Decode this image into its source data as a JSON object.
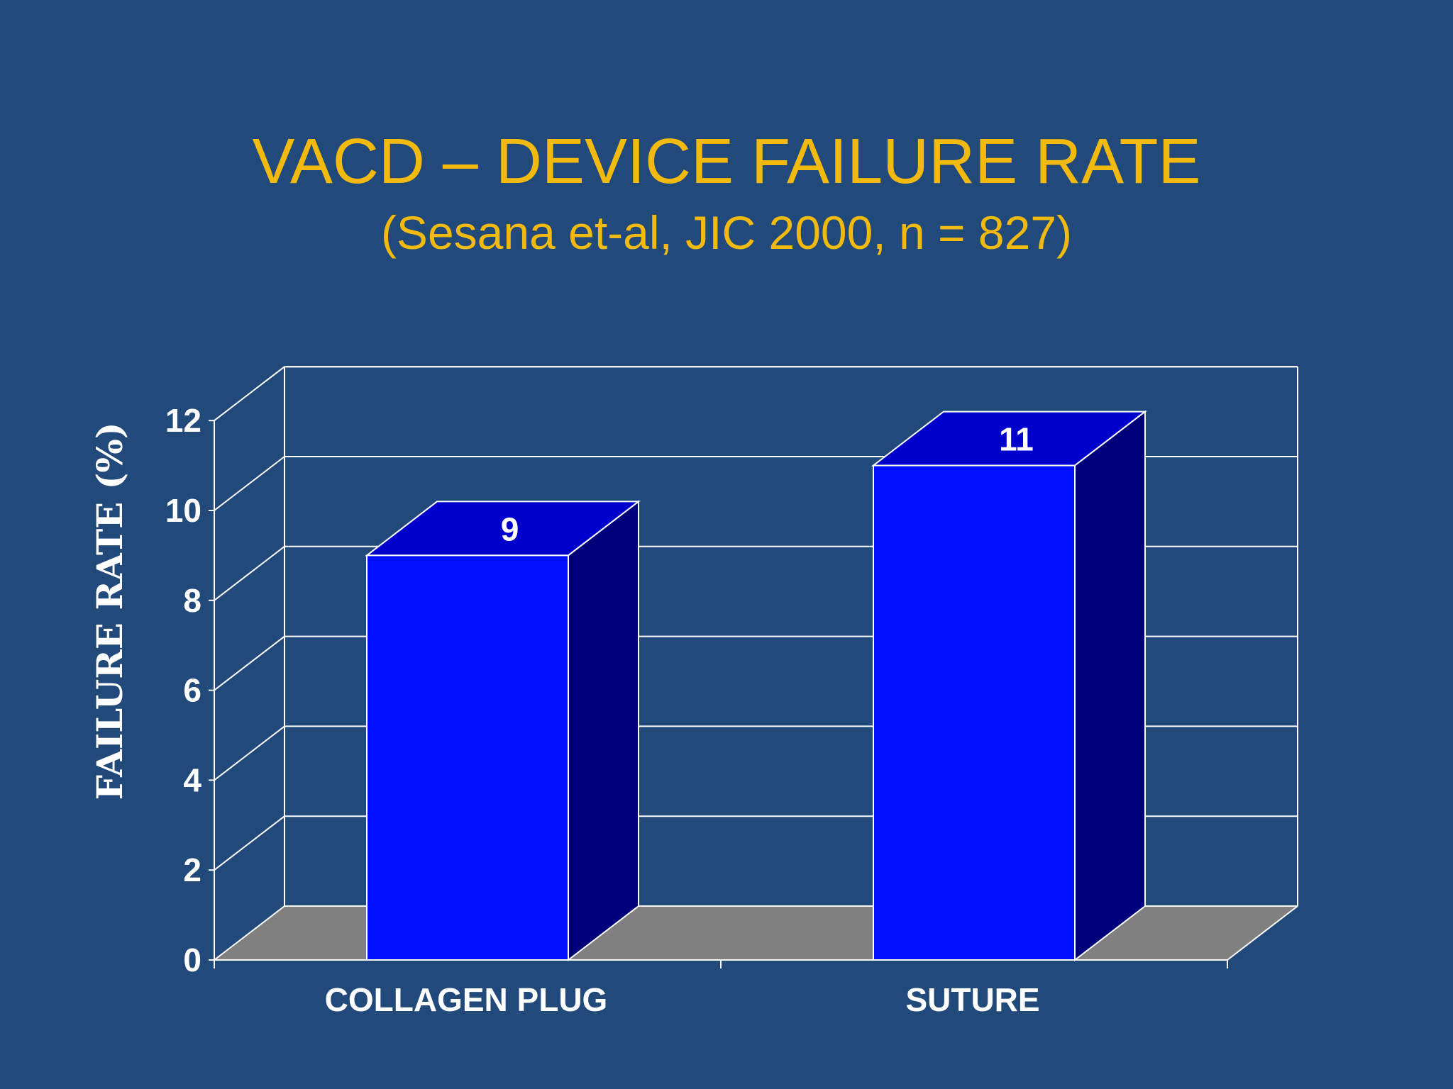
{
  "slide": {
    "title": "VACD – DEVICE FAILURE RATE",
    "subtitle": "(Sesana et-al, JIC 2000, n = 827)"
  },
  "colors": {
    "background": "#21497A",
    "title": "#F2B90F",
    "bar_front": "#0010FF",
    "bar_top": "#0000CC",
    "bar_side": "#00007A",
    "floor": "#808080",
    "grid": "#FFFFFF",
    "text": "#FFFFFF"
  },
  "chart_data": {
    "type": "bar",
    "style": "3d",
    "categories": [
      "COLLAGEN PLUG",
      "SUTURE"
    ],
    "values": [
      9,
      11
    ],
    "data_labels": [
      "9",
      "11"
    ],
    "ylabel": "FAILURE RATE (%)",
    "xlabel": "",
    "ylim": [
      0,
      12
    ],
    "yticks": [
      "0",
      "2",
      "4",
      "6",
      "8",
      "10",
      "12"
    ],
    "grid": true
  }
}
